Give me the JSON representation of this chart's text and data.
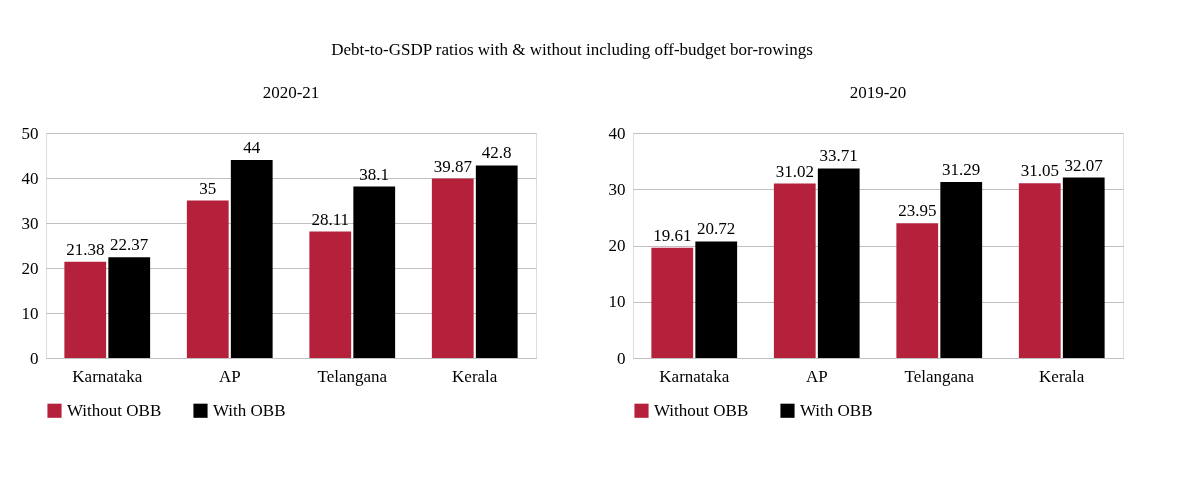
{
  "chart_data": [
    {
      "type": "bar",
      "title": "2020-21",
      "annotations": [
        "Debt-to-GSDP ratios with & without including off-budget bor-rowings"
      ],
      "categories": [
        "Karnataka",
        "AP",
        "Telangana",
        "Kerala"
      ],
      "series": [
        {
          "name": "Without OBB",
          "color": "#b5203a",
          "values": [
            21.38,
            35,
            28.11,
            39.87
          ]
        },
        {
          "name": "With OBB",
          "color": "#000000",
          "values": [
            22.37,
            44,
            38.1,
            42.8
          ]
        }
      ],
      "ylim": [
        0,
        50
      ],
      "yticks": [
        0,
        10,
        20,
        30,
        40,
        50
      ],
      "grid": "y",
      "legend": "bottom",
      "data_labels": true
    },
    {
      "type": "bar",
      "title": "2019-20",
      "categories": [
        "Karnataka",
        "AP",
        "Telangana",
        "Kerala"
      ],
      "series": [
        {
          "name": "Without OBB",
          "color": "#b5203a",
          "values": [
            19.61,
            31.02,
            23.95,
            31.05
          ]
        },
        {
          "name": "With OBB",
          "color": "#000000",
          "values": [
            20.72,
            33.71,
            31.29,
            32.07
          ]
        }
      ],
      "ylim": [
        0,
        40
      ],
      "yticks": [
        0,
        10,
        20,
        30,
        40
      ],
      "grid": "y",
      "legend": "bottom",
      "data_labels": true
    }
  ]
}
